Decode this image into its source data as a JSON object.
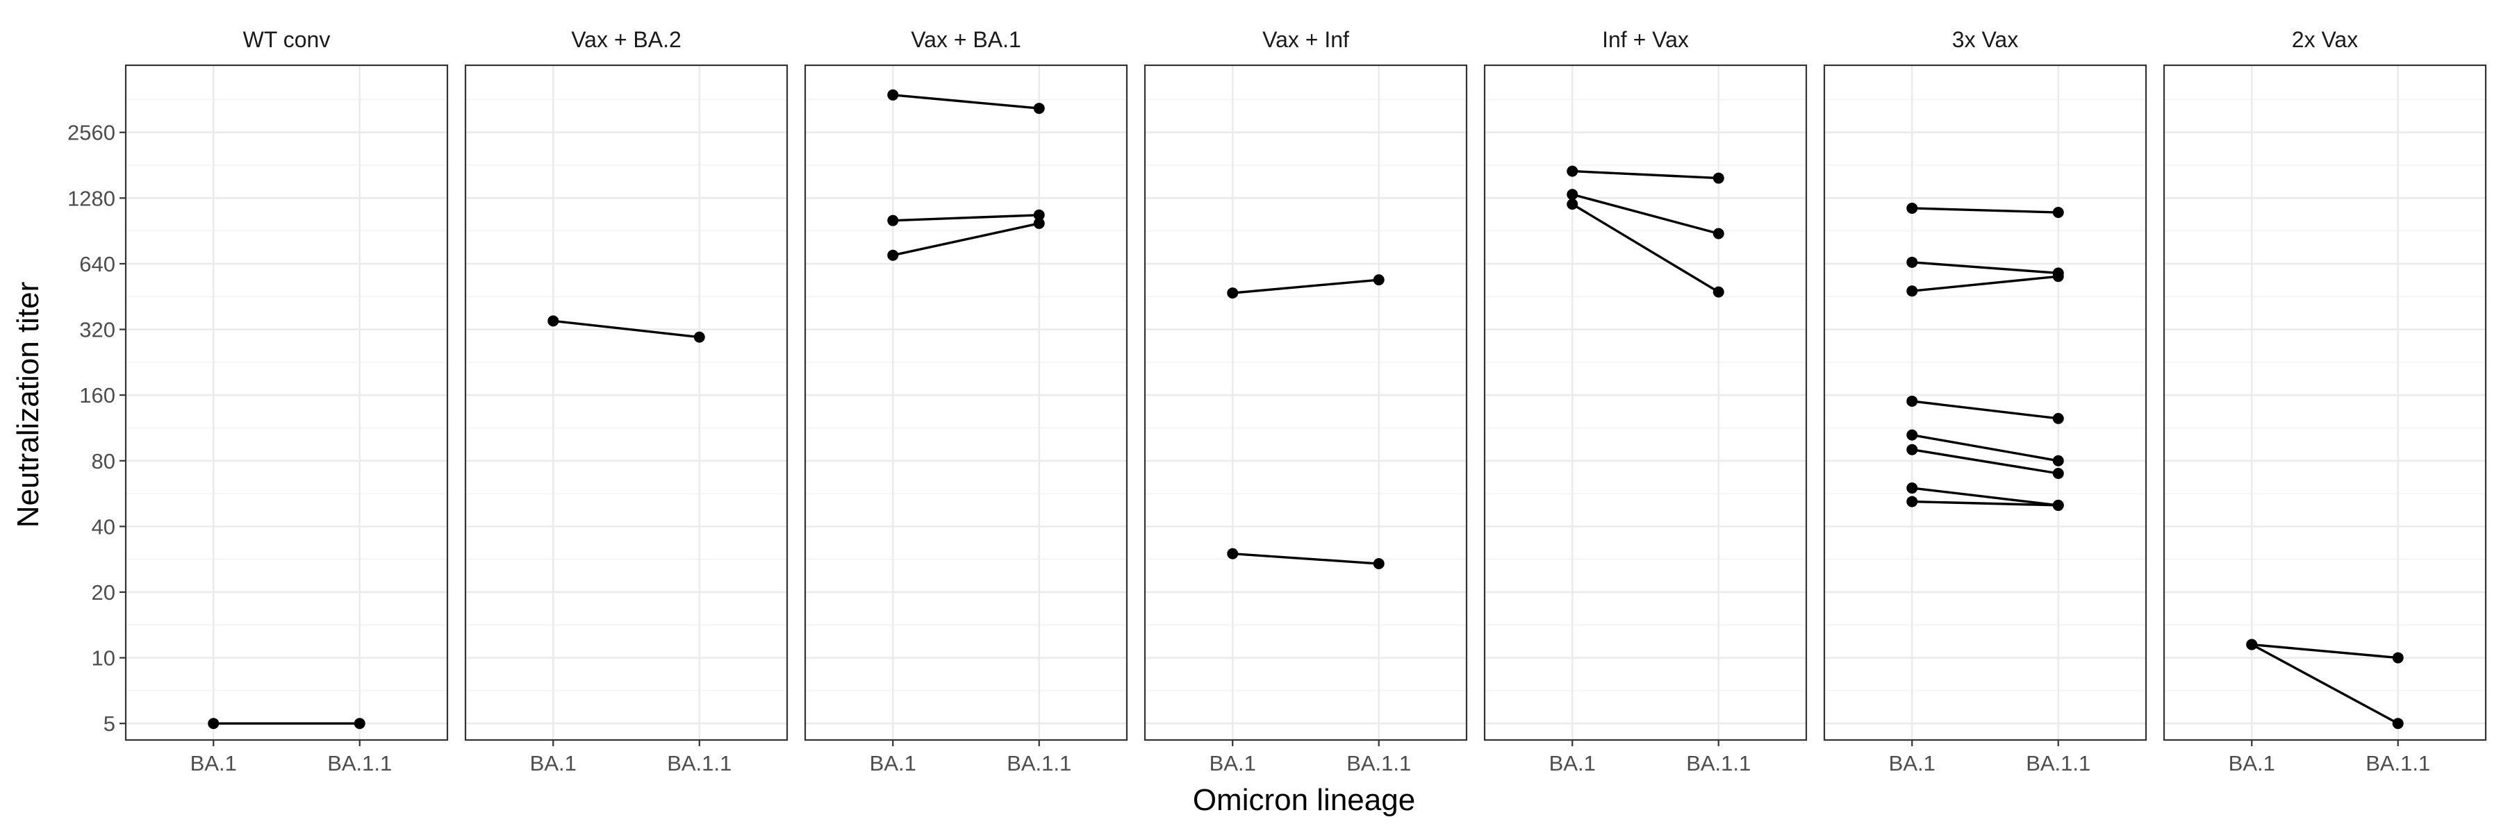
{
  "chart_data": {
    "type": "line",
    "xlabel": "Omicron lineage",
    "ylabel": "Neutralization titer",
    "x_categories": [
      "BA.1",
      "BA.1.1"
    ],
    "y_scale": "log2",
    "ylim": [
      4.2,
      5200
    ],
    "y_ticks": [
      5,
      10,
      20,
      40,
      80,
      160,
      320,
      640,
      1280,
      2560
    ],
    "y_tick_labels": [
      "5",
      "10",
      "20",
      "40",
      "80",
      "160",
      "320",
      "640",
      "1280",
      "2560"
    ],
    "grid": true,
    "legend": "none",
    "facets": [
      {
        "title": "WT conv",
        "pairs": [
          [
            5,
            5
          ]
        ]
      },
      {
        "title": "Vax + BA.2",
        "pairs": [
          [
            350,
            295
          ]
        ]
      },
      {
        "title": "Vax + BA.1",
        "pairs": [
          [
            3800,
            3300
          ],
          [
            1010,
            1070
          ],
          [
            700,
            980
          ]
        ]
      },
      {
        "title": "Vax + Inf",
        "pairs": [
          [
            470,
            540
          ],
          [
            30,
            27
          ]
        ]
      },
      {
        "title": "Inf + Vax",
        "pairs": [
          [
            1700,
            1580
          ],
          [
            1330,
            880
          ],
          [
            1200,
            475
          ]
        ]
      },
      {
        "title": "3x Vax",
        "pairs": [
          [
            1150,
            1100
          ],
          [
            650,
            580
          ],
          [
            480,
            560
          ],
          [
            150,
            125
          ],
          [
            105,
            80
          ],
          [
            90,
            70
          ],
          [
            60,
            50
          ],
          [
            52,
            50
          ]
        ]
      },
      {
        "title": "2x Vax",
        "pairs": [
          [
            11.5,
            10
          ],
          [
            11.5,
            5
          ]
        ]
      }
    ]
  }
}
